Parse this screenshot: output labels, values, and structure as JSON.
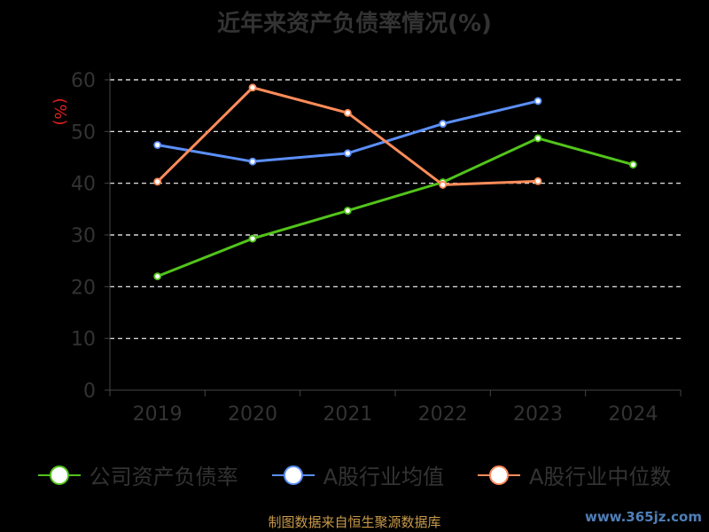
{
  "chart_data": {
    "type": "line",
    "title": "近年来资产负债率情况(%)",
    "ylabel": "(%)",
    "xlabel": "",
    "categories": [
      "2019",
      "2020",
      "2021",
      "2022",
      "2023",
      "2024"
    ],
    "ylim": [
      0,
      60
    ],
    "yticks": [
      "0",
      "10",
      "20",
      "30",
      "40",
      "50",
      "60"
    ],
    "grid": true,
    "legend_position": "bottom",
    "series": [
      {
        "name": "公司资产负债率",
        "color": "#52c41a",
        "values": [
          22.0,
          29.3,
          34.7,
          40.2,
          48.7,
          43.6
        ]
      },
      {
        "name": "A股行业均值",
        "color": "#5b8ff9",
        "values": [
          47.4,
          44.2,
          45.8,
          51.5,
          55.9,
          null
        ]
      },
      {
        "name": "A股行业中位数",
        "color": "#ff8c5a",
        "values": [
          40.3,
          58.5,
          53.6,
          39.7,
          40.4,
          null
        ]
      }
    ]
  },
  "source": "制图数据来自恒生聚源数据库",
  "watermark": "www.365jz.com"
}
